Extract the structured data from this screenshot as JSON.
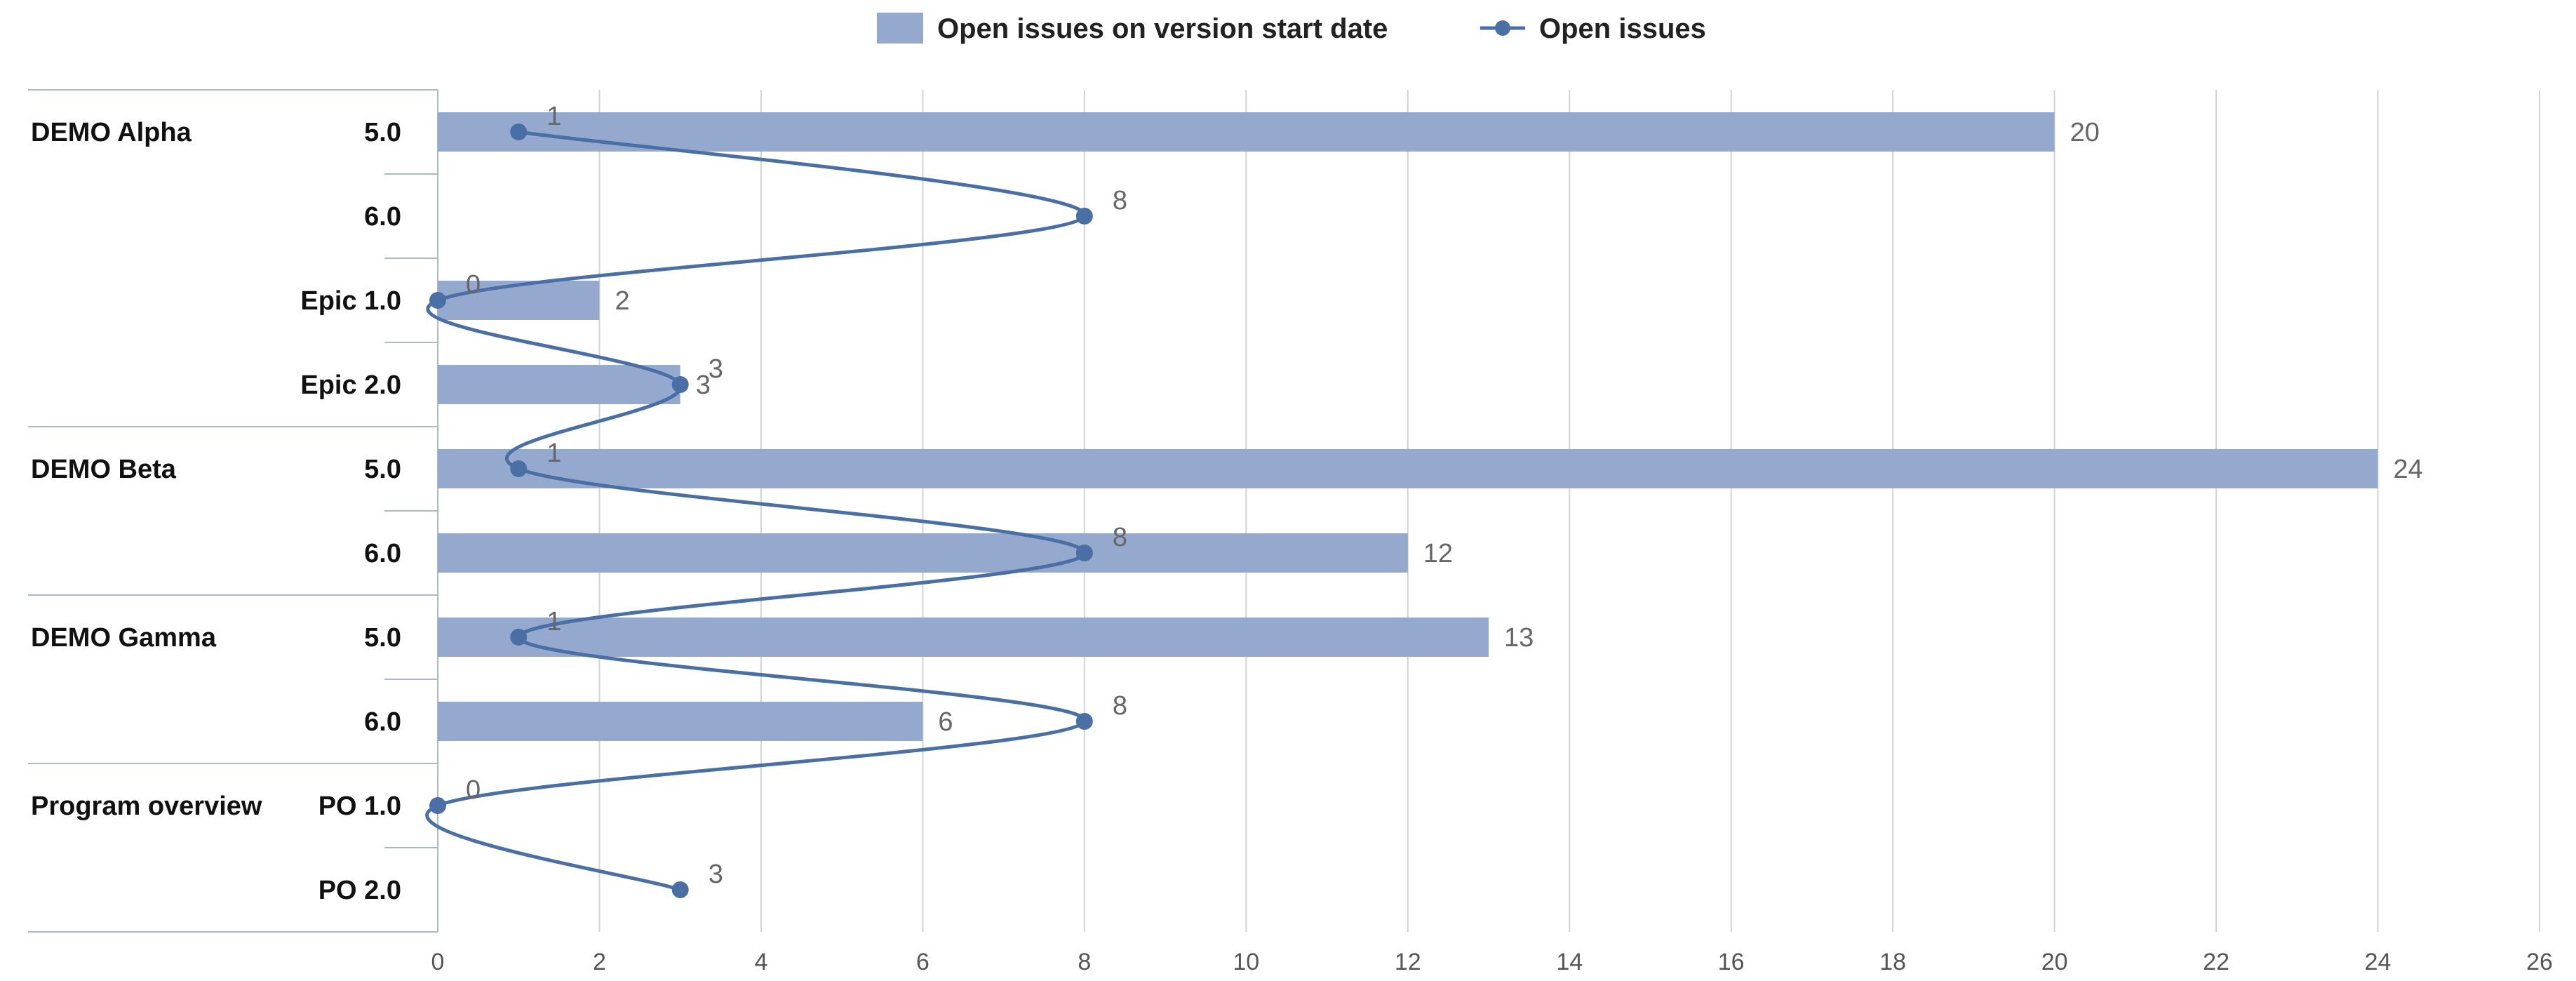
{
  "chart_data": {
    "type": "bar",
    "orientation": "horizontal",
    "legend_position": "top",
    "grid": true,
    "xlim": [
      0,
      26
    ],
    "x_ticks": [
      0,
      2,
      4,
      6,
      8,
      10,
      12,
      14,
      16,
      18,
      20,
      22,
      24,
      26
    ],
    "colors": {
      "bar": "#95a9cf",
      "line": "#4a6fa5",
      "grid": "#d3d3d3",
      "separator": "#aab8c8"
    },
    "groups": [
      {
        "name": "DEMO Alpha",
        "start_index": 0
      },
      {
        "name": "DEMO Beta",
        "start_index": 4
      },
      {
        "name": "DEMO Gamma",
        "start_index": 6
      },
      {
        "name": "Program overview",
        "start_index": 8
      }
    ],
    "categories": [
      {
        "label": "5.0",
        "group": "DEMO Alpha"
      },
      {
        "label": "6.0",
        "group": "DEMO Alpha"
      },
      {
        "label": "Epic 1.0",
        "group": "DEMO Alpha"
      },
      {
        "label": "Epic 2.0",
        "group": "DEMO Alpha"
      },
      {
        "label": "5.0",
        "group": "DEMO Beta"
      },
      {
        "label": "6.0",
        "group": "DEMO Beta"
      },
      {
        "label": "5.0",
        "group": "DEMO Gamma"
      },
      {
        "label": "6.0",
        "group": "DEMO Gamma"
      },
      {
        "label": "PO 1.0",
        "group": "Program overview"
      },
      {
        "label": "PO 2.0",
        "group": "Program overview"
      }
    ],
    "series": [
      {
        "name": "Open issues on version start date",
        "type": "bar",
        "values": [
          20,
          null,
          2,
          3,
          24,
          12,
          13,
          6,
          null,
          null
        ]
      },
      {
        "name": "Open issues",
        "type": "line",
        "values": [
          1,
          8,
          0,
          3,
          1,
          8,
          1,
          8,
          0,
          3
        ]
      }
    ]
  }
}
